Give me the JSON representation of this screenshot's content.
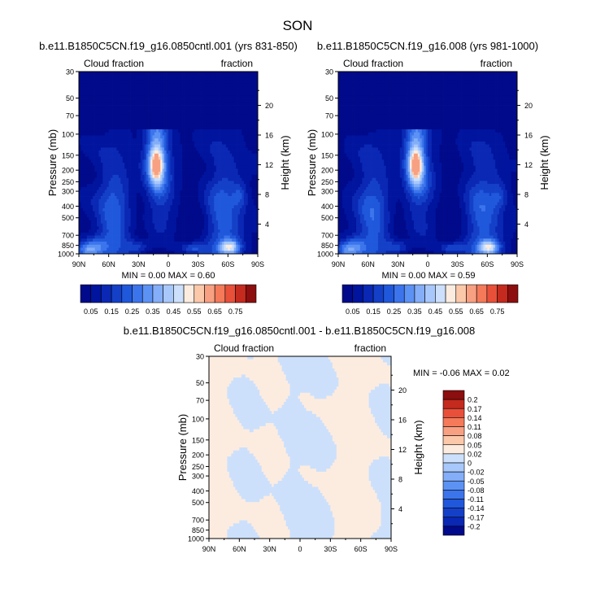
{
  "figure": {
    "title": "SON"
  },
  "colors": {
    "palette": [
      "#000a8a",
      "#00149e",
      "#0a28b4",
      "#1440c8",
      "#2058dc",
      "#3c74ec",
      "#5c92f4",
      "#84aef8",
      "#a8c8fc",
      "#cce0fc",
      "#fcece0",
      "#fcc8aa",
      "#f8a082",
      "#f47a5a",
      "#e8503a",
      "#c42a1e",
      "#8c0e0e"
    ],
    "diff_palette": [
      "#000a8a",
      "#0a28b4",
      "#1440c8",
      "#2058dc",
      "#3c74ec",
      "#5c92f4",
      "#84aef8",
      "#a8c8fc",
      "#cce0fc",
      "#ffffff",
      "#fcece0",
      "#fcc8aa",
      "#f8a082",
      "#f47a5a",
      "#e8503a",
      "#c42a1e",
      "#8c0e0e"
    ]
  },
  "chart_data": [
    {
      "type": "heatmap",
      "title": "b.e11.B1850C5CN.f19_g16.0850cntl.001 (yrs 831-850)",
      "left_label": "Cloud fraction",
      "right_label": "fraction",
      "ylabel": "Pressure (mb)",
      "ylabel_right": "Height (km)",
      "x_ticks": [
        "90N",
        "60N",
        "30N",
        "0",
        "30S",
        "60S",
        "90S"
      ],
      "x_values": [
        90,
        60,
        30,
        0,
        -30,
        -60,
        -90
      ],
      "y_ticks": [
        "30",
        "50",
        "70",
        "100",
        "150",
        "200",
        "250",
        "300",
        "400",
        "500",
        "700",
        "850",
        "1000"
      ],
      "y_values": [
        30,
        50,
        70,
        100,
        150,
        200,
        250,
        300,
        400,
        500,
        700,
        850,
        1000
      ],
      "right_ticks": [
        "20",
        "16",
        "12",
        "8",
        "4"
      ],
      "right_values": [
        20,
        16,
        12,
        8,
        4
      ],
      "ylim": [
        30,
        1000
      ],
      "xlim": [
        90,
        -90
      ],
      "stats": "MIN =   0.00   MAX =   0.60",
      "min": 0.0,
      "max": 0.6,
      "colorbar_labels": [
        "0.05",
        "0.15",
        "0.25",
        "0.35",
        "0.45",
        "0.55",
        "0.65",
        "0.75"
      ],
      "colorbar_levels": [
        0,
        0.05,
        0.1,
        0.15,
        0.2,
        0.25,
        0.3,
        0.35,
        0.4,
        0.45,
        0.5,
        0.55,
        0.6,
        0.65,
        0.7,
        0.75,
        0.8
      ]
    },
    {
      "type": "heatmap",
      "title": "b.e11.B1850C5CN.f19_g16.008 (yrs 981-1000)",
      "left_label": "Cloud fraction",
      "right_label": "fraction",
      "ylabel": "Pressure (mb)",
      "ylabel_right": "Height (km)",
      "x_ticks": [
        "90N",
        "60N",
        "30N",
        "0",
        "30S",
        "60S",
        "90S"
      ],
      "x_values": [
        90,
        60,
        30,
        0,
        -30,
        -60,
        -90
      ],
      "y_ticks": [
        "30",
        "50",
        "70",
        "100",
        "150",
        "200",
        "250",
        "300",
        "400",
        "500",
        "700",
        "850",
        "1000"
      ],
      "y_values": [
        30,
        50,
        70,
        100,
        150,
        200,
        250,
        300,
        400,
        500,
        700,
        850,
        1000
      ],
      "right_ticks": [
        "20",
        "16",
        "12",
        "8",
        "4"
      ],
      "right_values": [
        20,
        16,
        12,
        8,
        4
      ],
      "ylim": [
        30,
        1000
      ],
      "xlim": [
        90,
        -90
      ],
      "stats": "MIN =   0.00   MAX =   0.59",
      "min": 0.0,
      "max": 0.59,
      "colorbar_labels": [
        "0.05",
        "0.15",
        "0.25",
        "0.35",
        "0.45",
        "0.55",
        "0.65",
        "0.75"
      ],
      "colorbar_levels": [
        0,
        0.05,
        0.1,
        0.15,
        0.2,
        0.25,
        0.3,
        0.35,
        0.4,
        0.45,
        0.5,
        0.55,
        0.6,
        0.65,
        0.7,
        0.75,
        0.8
      ]
    },
    {
      "type": "heatmap",
      "title": "b.e11.B1850C5CN.f19_g16.0850cntl.001 - b.e11.B1850C5CN.f19_g16.008",
      "left_label": "Cloud fraction",
      "right_label": "fraction",
      "ylabel": "Pressure (mb)",
      "ylabel_right": "Height (km)",
      "x_ticks": [
        "90N",
        "60N",
        "30N",
        "0",
        "30S",
        "60S",
        "90S"
      ],
      "x_values": [
        90,
        60,
        30,
        0,
        -30,
        -60,
        -90
      ],
      "y_ticks": [
        "30",
        "50",
        "70",
        "100",
        "150",
        "200",
        "250",
        "300",
        "400",
        "500",
        "700",
        "850",
        "1000"
      ],
      "y_values": [
        30,
        50,
        70,
        100,
        150,
        200,
        250,
        300,
        400,
        500,
        700,
        850,
        1000
      ],
      "right_ticks": [
        "20",
        "16",
        "12",
        "8",
        "4"
      ],
      "right_values": [
        20,
        16,
        12,
        8,
        4
      ],
      "ylim": [
        30,
        1000
      ],
      "xlim": [
        90,
        -90
      ],
      "stats": "MIN =  -0.06   MAX =   0.02",
      "min": -0.06,
      "max": 0.02,
      "colorbar_labels": [
        "0.2",
        "0.17",
        "0.14",
        "0.11",
        "0.08",
        "0.05",
        "0.02",
        "0",
        "-0.02",
        "-0.05",
        "-0.08",
        "-0.11",
        "-0.14",
        "-0.17",
        "-0.2"
      ]
    }
  ]
}
